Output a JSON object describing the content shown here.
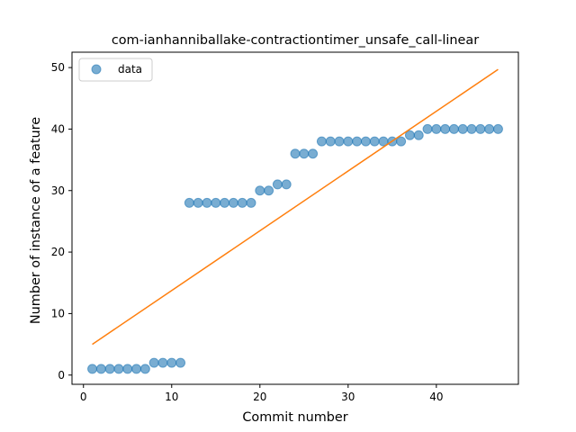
{
  "chart_data": {
    "type": "scatter",
    "title": "com-ianhanniballake-contractiontimer_unsafe_call-linear",
    "xlabel": "Commit number",
    "ylabel": "Number of instance of a feature",
    "xlim": [
      -1.3,
      49.3
    ],
    "ylim": [
      -1.5,
      52.5
    ],
    "xticks": [
      0,
      10,
      20,
      30,
      40
    ],
    "yticks": [
      0,
      10,
      20,
      30,
      40,
      50
    ],
    "grid": false,
    "legend_position": "upper-left",
    "series": [
      {
        "name": "data",
        "kind": "points",
        "color": "#1f77b4",
        "x": [
          1,
          2,
          3,
          4,
          5,
          6,
          7,
          8,
          9,
          10,
          11,
          12,
          13,
          14,
          15,
          16,
          17,
          18,
          19,
          20,
          21,
          22,
          23,
          24,
          25,
          26,
          27,
          28,
          29,
          30,
          31,
          32,
          33,
          34,
          35,
          36,
          37,
          38,
          39,
          40,
          41,
          42,
          43,
          44,
          45,
          46,
          47
        ],
        "y": [
          1,
          1,
          1,
          1,
          1,
          1,
          1,
          2,
          2,
          2,
          2,
          28,
          28,
          28,
          28,
          28,
          28,
          28,
          28,
          30,
          30,
          31,
          31,
          36,
          36,
          36,
          38,
          38,
          38,
          38,
          38,
          38,
          38,
          38,
          38,
          38,
          39,
          39,
          40,
          40,
          40,
          40,
          40,
          40,
          40,
          40,
          40
        ]
      },
      {
        "kind": "fit-line",
        "color": "#ff7f0e",
        "x": [
          1,
          47
        ],
        "y": [
          5.0,
          49.7
        ]
      }
    ]
  }
}
